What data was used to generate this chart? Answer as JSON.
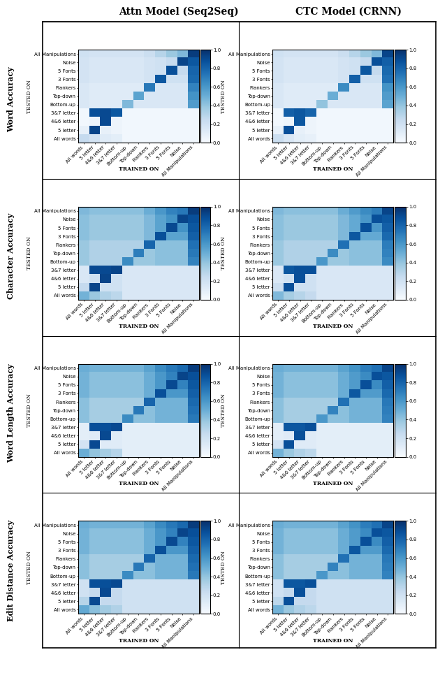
{
  "title_left": "Attn Model (Seq2Seq)",
  "title_right": "CTC Model (CRNN)",
  "row_labels": [
    "Word Accuracy",
    "Character Accuracy",
    "Word Length Accuracy",
    "Edit Distance Accuracy"
  ],
  "ytick_labels": [
    "All Manipulations",
    "Noise",
    "5 Fonts",
    "3 Fonts",
    "Flankers",
    "Top-down",
    "Bottom-up",
    "3&7 letter",
    "4&6 letter",
    "5 letter",
    "All words"
  ],
  "xtick_labels": [
    "All words",
    "5 letter",
    "4&6 letter",
    "3&7 letter",
    "Bottom-up",
    "Top-down",
    "Flankers",
    "3 Fonts",
    "5 Fonts",
    "Noise",
    "All Manipulations"
  ],
  "colormap": "Blues",
  "vmin": 0.0,
  "vmax": 1.0,
  "wa_attn": [
    [
      0.2,
      0.18,
      0.18,
      0.18,
      0.18,
      0.18,
      0.22,
      0.3,
      0.38,
      0.45,
      0.95
    ],
    [
      0.18,
      0.15,
      0.15,
      0.15,
      0.15,
      0.15,
      0.18,
      0.2,
      0.25,
      0.92,
      0.85
    ],
    [
      0.18,
      0.15,
      0.15,
      0.15,
      0.15,
      0.15,
      0.18,
      0.2,
      0.88,
      0.25,
      0.8
    ],
    [
      0.18,
      0.15,
      0.15,
      0.15,
      0.15,
      0.15,
      0.18,
      0.85,
      0.2,
      0.2,
      0.78
    ],
    [
      0.15,
      0.12,
      0.12,
      0.12,
      0.12,
      0.12,
      0.72,
      0.15,
      0.15,
      0.15,
      0.68
    ],
    [
      0.15,
      0.12,
      0.12,
      0.12,
      0.12,
      0.55,
      0.15,
      0.15,
      0.15,
      0.15,
      0.62
    ],
    [
      0.15,
      0.12,
      0.12,
      0.12,
      0.45,
      0.15,
      0.15,
      0.15,
      0.15,
      0.15,
      0.58
    ],
    [
      0.03,
      0.88,
      0.9,
      0.85,
      0.03,
      0.03,
      0.03,
      0.03,
      0.03,
      0.03,
      0.03
    ],
    [
      0.03,
      0.05,
      0.9,
      0.05,
      0.03,
      0.03,
      0.03,
      0.03,
      0.03,
      0.03,
      0.03
    ],
    [
      0.08,
      0.92,
      0.08,
      0.05,
      0.03,
      0.03,
      0.03,
      0.03,
      0.03,
      0.03,
      0.03
    ],
    [
      0.25,
      0.18,
      0.12,
      0.1,
      0.03,
      0.03,
      0.03,
      0.03,
      0.03,
      0.03,
      0.03
    ]
  ],
  "wa_ctc": [
    [
      0.2,
      0.18,
      0.18,
      0.18,
      0.18,
      0.18,
      0.22,
      0.3,
      0.38,
      0.45,
      0.92
    ],
    [
      0.18,
      0.15,
      0.15,
      0.15,
      0.15,
      0.15,
      0.18,
      0.2,
      0.25,
      0.88,
      0.82
    ],
    [
      0.18,
      0.15,
      0.15,
      0.15,
      0.15,
      0.15,
      0.18,
      0.2,
      0.85,
      0.25,
      0.78
    ],
    [
      0.18,
      0.15,
      0.15,
      0.15,
      0.15,
      0.15,
      0.18,
      0.82,
      0.2,
      0.2,
      0.75
    ],
    [
      0.15,
      0.12,
      0.12,
      0.12,
      0.12,
      0.12,
      0.65,
      0.15,
      0.15,
      0.15,
      0.62
    ],
    [
      0.15,
      0.12,
      0.12,
      0.12,
      0.12,
      0.5,
      0.15,
      0.15,
      0.15,
      0.15,
      0.58
    ],
    [
      0.15,
      0.12,
      0.12,
      0.12,
      0.4,
      0.15,
      0.15,
      0.15,
      0.15,
      0.15,
      0.55
    ],
    [
      0.03,
      0.82,
      0.85,
      0.8,
      0.03,
      0.03,
      0.03,
      0.03,
      0.03,
      0.03,
      0.03
    ],
    [
      0.03,
      0.05,
      0.85,
      0.05,
      0.03,
      0.03,
      0.03,
      0.03,
      0.03,
      0.03,
      0.03
    ],
    [
      0.08,
      0.88,
      0.08,
      0.05,
      0.03,
      0.03,
      0.03,
      0.03,
      0.03,
      0.03,
      0.03
    ],
    [
      0.22,
      0.15,
      0.1,
      0.08,
      0.03,
      0.03,
      0.03,
      0.03,
      0.03,
      0.03,
      0.03
    ]
  ],
  "ca_attn": [
    [
      0.45,
      0.42,
      0.42,
      0.42,
      0.42,
      0.42,
      0.5,
      0.6,
      0.68,
      0.72,
      0.95
    ],
    [
      0.42,
      0.38,
      0.38,
      0.38,
      0.38,
      0.38,
      0.45,
      0.55,
      0.62,
      0.92,
      0.88
    ],
    [
      0.42,
      0.38,
      0.38,
      0.38,
      0.38,
      0.38,
      0.45,
      0.55,
      0.9,
      0.62,
      0.85
    ],
    [
      0.42,
      0.38,
      0.38,
      0.38,
      0.38,
      0.38,
      0.45,
      0.88,
      0.55,
      0.55,
      0.82
    ],
    [
      0.38,
      0.32,
      0.32,
      0.32,
      0.32,
      0.32,
      0.8,
      0.42,
      0.42,
      0.42,
      0.75
    ],
    [
      0.38,
      0.32,
      0.32,
      0.32,
      0.32,
      0.7,
      0.38,
      0.42,
      0.42,
      0.42,
      0.72
    ],
    [
      0.38,
      0.32,
      0.32,
      0.32,
      0.65,
      0.38,
      0.38,
      0.42,
      0.42,
      0.42,
      0.68
    ],
    [
      0.15,
      0.9,
      0.9,
      0.92,
      0.15,
      0.15,
      0.15,
      0.15,
      0.15,
      0.15,
      0.15
    ],
    [
      0.15,
      0.2,
      0.92,
      0.2,
      0.15,
      0.15,
      0.15,
      0.15,
      0.15,
      0.15,
      0.15
    ],
    [
      0.25,
      0.92,
      0.2,
      0.2,
      0.15,
      0.15,
      0.15,
      0.15,
      0.15,
      0.15,
      0.15
    ],
    [
      0.48,
      0.38,
      0.32,
      0.28,
      0.15,
      0.15,
      0.15,
      0.15,
      0.15,
      0.15,
      0.15
    ]
  ],
  "ca_ctc": [
    [
      0.45,
      0.42,
      0.42,
      0.42,
      0.42,
      0.42,
      0.5,
      0.58,
      0.65,
      0.7,
      0.92
    ],
    [
      0.42,
      0.38,
      0.38,
      0.38,
      0.38,
      0.38,
      0.45,
      0.52,
      0.6,
      0.88,
      0.85
    ],
    [
      0.42,
      0.38,
      0.38,
      0.38,
      0.38,
      0.38,
      0.45,
      0.52,
      0.88,
      0.6,
      0.82
    ],
    [
      0.42,
      0.38,
      0.38,
      0.38,
      0.38,
      0.38,
      0.45,
      0.85,
      0.52,
      0.52,
      0.78
    ],
    [
      0.38,
      0.32,
      0.32,
      0.32,
      0.32,
      0.32,
      0.75,
      0.42,
      0.42,
      0.42,
      0.7
    ],
    [
      0.38,
      0.32,
      0.32,
      0.32,
      0.32,
      0.65,
      0.38,
      0.42,
      0.42,
      0.42,
      0.68
    ],
    [
      0.38,
      0.32,
      0.32,
      0.32,
      0.6,
      0.38,
      0.38,
      0.42,
      0.42,
      0.42,
      0.65
    ],
    [
      0.15,
      0.85,
      0.88,
      0.88,
      0.15,
      0.15,
      0.15,
      0.15,
      0.15,
      0.15,
      0.15
    ],
    [
      0.15,
      0.2,
      0.88,
      0.2,
      0.15,
      0.15,
      0.15,
      0.15,
      0.15,
      0.15,
      0.15
    ],
    [
      0.22,
      0.88,
      0.2,
      0.2,
      0.15,
      0.15,
      0.15,
      0.15,
      0.15,
      0.15,
      0.15
    ],
    [
      0.45,
      0.35,
      0.3,
      0.25,
      0.15,
      0.15,
      0.15,
      0.15,
      0.15,
      0.15,
      0.15
    ]
  ],
  "wla_attn": [
    [
      0.5,
      0.48,
      0.48,
      0.48,
      0.48,
      0.48,
      0.55,
      0.65,
      0.72,
      0.78,
      0.95
    ],
    [
      0.48,
      0.42,
      0.42,
      0.42,
      0.42,
      0.42,
      0.5,
      0.6,
      0.68,
      0.92,
      0.88
    ],
    [
      0.48,
      0.42,
      0.42,
      0.42,
      0.42,
      0.42,
      0.5,
      0.6,
      0.9,
      0.68,
      0.85
    ],
    [
      0.48,
      0.42,
      0.42,
      0.42,
      0.42,
      0.42,
      0.5,
      0.88,
      0.6,
      0.6,
      0.82
    ],
    [
      0.42,
      0.35,
      0.35,
      0.35,
      0.35,
      0.35,
      0.8,
      0.48,
      0.48,
      0.48,
      0.78
    ],
    [
      0.42,
      0.35,
      0.35,
      0.35,
      0.35,
      0.72,
      0.42,
      0.48,
      0.48,
      0.48,
      0.75
    ],
    [
      0.42,
      0.35,
      0.35,
      0.35,
      0.65,
      0.42,
      0.42,
      0.48,
      0.48,
      0.48,
      0.72
    ],
    [
      0.1,
      0.88,
      0.88,
      0.9,
      0.1,
      0.1,
      0.1,
      0.1,
      0.1,
      0.1,
      0.1
    ],
    [
      0.1,
      0.12,
      0.9,
      0.12,
      0.1,
      0.1,
      0.1,
      0.1,
      0.1,
      0.1,
      0.1
    ],
    [
      0.18,
      0.9,
      0.12,
      0.12,
      0.1,
      0.1,
      0.1,
      0.1,
      0.1,
      0.1,
      0.1
    ],
    [
      0.5,
      0.4,
      0.35,
      0.3,
      0.1,
      0.1,
      0.1,
      0.1,
      0.1,
      0.1,
      0.1
    ]
  ],
  "wla_ctc": [
    [
      0.5,
      0.48,
      0.48,
      0.48,
      0.48,
      0.48,
      0.55,
      0.62,
      0.7,
      0.75,
      0.92
    ],
    [
      0.48,
      0.42,
      0.42,
      0.42,
      0.42,
      0.42,
      0.5,
      0.58,
      0.65,
      0.88,
      0.85
    ],
    [
      0.48,
      0.42,
      0.42,
      0.42,
      0.42,
      0.42,
      0.5,
      0.58,
      0.88,
      0.65,
      0.82
    ],
    [
      0.48,
      0.42,
      0.42,
      0.42,
      0.42,
      0.42,
      0.5,
      0.85,
      0.58,
      0.58,
      0.78
    ],
    [
      0.42,
      0.35,
      0.35,
      0.35,
      0.35,
      0.35,
      0.75,
      0.48,
      0.48,
      0.48,
      0.72
    ],
    [
      0.42,
      0.35,
      0.35,
      0.35,
      0.35,
      0.68,
      0.42,
      0.48,
      0.48,
      0.48,
      0.7
    ],
    [
      0.42,
      0.35,
      0.35,
      0.35,
      0.6,
      0.42,
      0.42,
      0.48,
      0.48,
      0.48,
      0.68
    ],
    [
      0.1,
      0.85,
      0.85,
      0.88,
      0.1,
      0.1,
      0.1,
      0.1,
      0.1,
      0.1,
      0.1
    ],
    [
      0.1,
      0.12,
      0.88,
      0.12,
      0.1,
      0.1,
      0.1,
      0.1,
      0.1,
      0.1,
      0.1
    ],
    [
      0.18,
      0.88,
      0.12,
      0.12,
      0.1,
      0.1,
      0.1,
      0.1,
      0.1,
      0.1,
      0.1
    ],
    [
      0.48,
      0.38,
      0.32,
      0.28,
      0.1,
      0.1,
      0.1,
      0.1,
      0.1,
      0.1,
      0.1
    ]
  ],
  "eda_attn": [
    [
      0.5,
      0.48,
      0.48,
      0.48,
      0.48,
      0.48,
      0.55,
      0.65,
      0.72,
      0.78,
      0.95
    ],
    [
      0.48,
      0.42,
      0.42,
      0.42,
      0.42,
      0.42,
      0.5,
      0.6,
      0.68,
      0.92,
      0.88
    ],
    [
      0.48,
      0.42,
      0.42,
      0.42,
      0.42,
      0.42,
      0.5,
      0.6,
      0.9,
      0.68,
      0.85
    ],
    [
      0.48,
      0.42,
      0.42,
      0.42,
      0.42,
      0.42,
      0.5,
      0.88,
      0.6,
      0.6,
      0.82
    ],
    [
      0.42,
      0.35,
      0.35,
      0.35,
      0.35,
      0.35,
      0.8,
      0.48,
      0.48,
      0.48,
      0.78
    ],
    [
      0.42,
      0.35,
      0.35,
      0.35,
      0.35,
      0.72,
      0.42,
      0.48,
      0.48,
      0.48,
      0.75
    ],
    [
      0.42,
      0.35,
      0.35,
      0.35,
      0.65,
      0.42,
      0.42,
      0.48,
      0.48,
      0.48,
      0.72
    ],
    [
      0.2,
      0.88,
      0.88,
      0.9,
      0.2,
      0.2,
      0.2,
      0.2,
      0.2,
      0.2,
      0.2
    ],
    [
      0.2,
      0.25,
      0.9,
      0.25,
      0.2,
      0.2,
      0.2,
      0.2,
      0.2,
      0.2,
      0.2
    ],
    [
      0.3,
      0.9,
      0.25,
      0.25,
      0.2,
      0.2,
      0.2,
      0.2,
      0.2,
      0.2,
      0.2
    ],
    [
      0.52,
      0.42,
      0.36,
      0.32,
      0.2,
      0.2,
      0.2,
      0.2,
      0.2,
      0.2,
      0.2
    ]
  ],
  "eda_ctc": [
    [
      0.5,
      0.48,
      0.48,
      0.48,
      0.48,
      0.48,
      0.55,
      0.62,
      0.7,
      0.75,
      0.92
    ],
    [
      0.48,
      0.42,
      0.42,
      0.42,
      0.42,
      0.42,
      0.5,
      0.58,
      0.65,
      0.88,
      0.85
    ],
    [
      0.48,
      0.42,
      0.42,
      0.42,
      0.42,
      0.42,
      0.5,
      0.58,
      0.88,
      0.65,
      0.82
    ],
    [
      0.48,
      0.42,
      0.42,
      0.42,
      0.42,
      0.42,
      0.5,
      0.85,
      0.58,
      0.58,
      0.78
    ],
    [
      0.42,
      0.35,
      0.35,
      0.35,
      0.35,
      0.35,
      0.75,
      0.48,
      0.48,
      0.48,
      0.72
    ],
    [
      0.42,
      0.35,
      0.35,
      0.35,
      0.35,
      0.68,
      0.42,
      0.48,
      0.48,
      0.48,
      0.7
    ],
    [
      0.42,
      0.35,
      0.35,
      0.35,
      0.6,
      0.42,
      0.42,
      0.48,
      0.48,
      0.48,
      0.68
    ],
    [
      0.2,
      0.85,
      0.85,
      0.88,
      0.2,
      0.2,
      0.2,
      0.2,
      0.2,
      0.2,
      0.2
    ],
    [
      0.2,
      0.25,
      0.88,
      0.25,
      0.2,
      0.2,
      0.2,
      0.2,
      0.2,
      0.2,
      0.2
    ],
    [
      0.28,
      0.88,
      0.25,
      0.25,
      0.2,
      0.2,
      0.2,
      0.2,
      0.2,
      0.2,
      0.2
    ],
    [
      0.48,
      0.38,
      0.32,
      0.28,
      0.2,
      0.2,
      0.2,
      0.2,
      0.2,
      0.2,
      0.2
    ]
  ]
}
